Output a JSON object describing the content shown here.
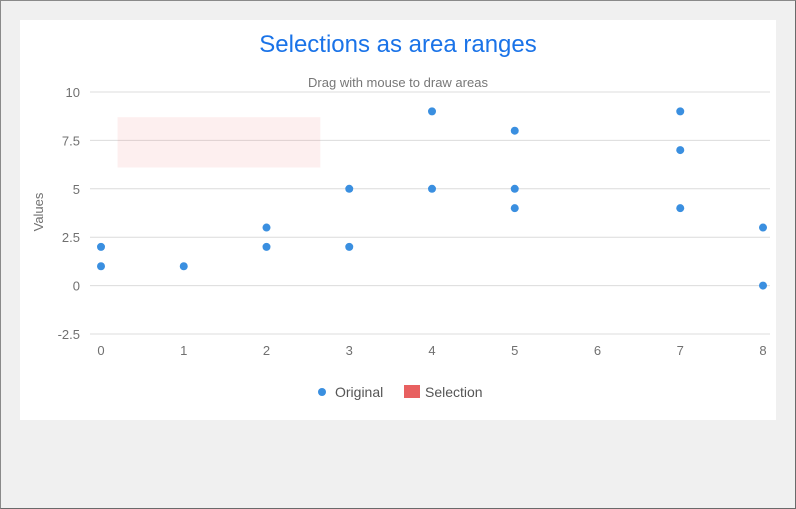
{
  "chart_data": {
    "type": "scatter",
    "title": "Selections as area ranges",
    "subtitle": "Drag with mouse to draw areas",
    "ylabel": "Values",
    "xlabel": "",
    "xlim": [
      0,
      8
    ],
    "ylim": [
      -2.5,
      10
    ],
    "xticks": [
      "0",
      "1",
      "2",
      "3",
      "4",
      "5",
      "6",
      "7",
      "8"
    ],
    "yticks": [
      "10",
      "7.5",
      "5",
      "2.5",
      "0",
      "-2.5"
    ],
    "grid": "horizontal",
    "legend_position": "bottom-center",
    "series": [
      {
        "name": "Original",
        "type": "scatter",
        "color": "#3a8fe0",
        "points": [
          [
            0,
            2
          ],
          [
            0,
            1
          ],
          [
            1,
            1
          ],
          [
            2,
            3
          ],
          [
            2,
            2
          ],
          [
            3,
            5
          ],
          [
            3,
            2
          ],
          [
            4,
            9
          ],
          [
            4,
            5
          ],
          [
            5,
            8
          ],
          [
            5,
            5
          ],
          [
            5,
            4
          ],
          [
            7,
            9
          ],
          [
            7,
            7
          ],
          [
            7,
            4
          ],
          [
            8,
            3
          ],
          [
            8,
            0
          ]
        ]
      },
      {
        "name": "Selection",
        "type": "arearange",
        "color": "#e86060",
        "fill_opacity": 0.1,
        "x_range": [
          0.2,
          2.65
        ],
        "y_range": [
          6.1,
          8.7
        ]
      }
    ]
  }
}
